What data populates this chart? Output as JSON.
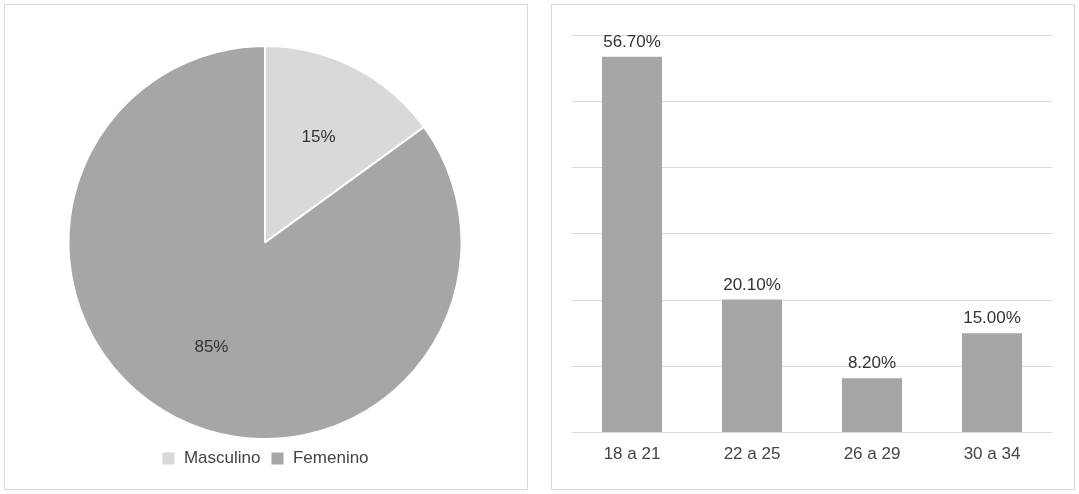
{
  "chart_data": [
    {
      "type": "pie",
      "categories": [
        "Masculino",
        "Femenino"
      ],
      "values": [
        15,
        85
      ],
      "colors": [
        "#d9d9d9",
        "#a6a6a6"
      ],
      "value_labels": [
        "15%",
        "85%"
      ],
      "legend": "bottom"
    },
    {
      "type": "bar",
      "categories": [
        "18 a 21",
        "22 a 25",
        "26 a 29",
        "30 a 34"
      ],
      "values": [
        56.7,
        20.1,
        8.2,
        15.0
      ],
      "color": "#a6a6a6",
      "value_labels": [
        "56.70%",
        "20.10%",
        "8.20%",
        "15.00%"
      ],
      "ylim": [
        0,
        60
      ],
      "yticks": [
        {
          "value": 0,
          "label": null
        },
        {
          "value": 10,
          "label": null
        },
        {
          "value": 20,
          "label": null
        },
        {
          "value": 30,
          "label": null
        },
        {
          "value": 40,
          "label": null
        },
        {
          "value": 50,
          "label": null
        },
        {
          "value": 60,
          "label": null
        }
      ],
      "tick_labels": "x",
      "grid": "y",
      "legend": false
    }
  ]
}
